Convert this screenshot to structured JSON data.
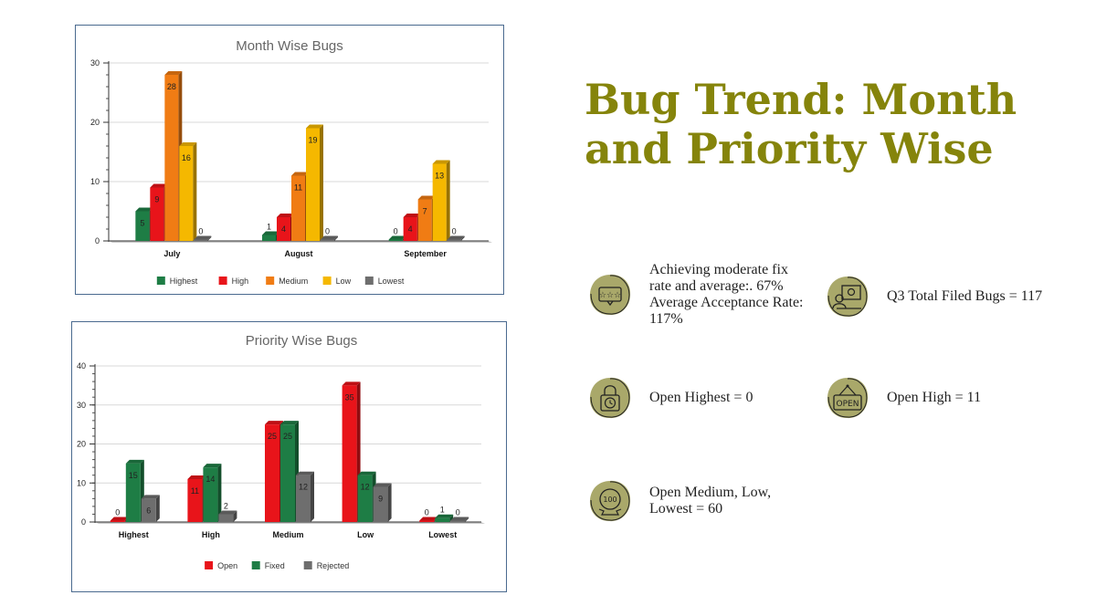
{
  "title": "Bug Trend: Month and Priority Wise",
  "colors": {
    "Highest": "#1e7d45",
    "High": "#e8141a",
    "Medium": "#f07c14",
    "Low": "#f5b800",
    "Lowest": "#6e6e6e",
    "Open": "#e8141a",
    "Fixed": "#1e7d45",
    "Rejected": "#6e6e6e",
    "title": "#85840b",
    "blob": "#a9a86a"
  },
  "stats": [
    {
      "text": "Achieving moderate fix rate and average:. 67% Average Acceptance Rate: 117%",
      "icon": "rating-stars-icon"
    },
    {
      "text": "Q3 Total Filed Bugs = 117",
      "icon": "bug-report-icon"
    },
    {
      "text": "Open Highest = 0",
      "icon": "clock-lock-icon"
    },
    {
      "text": "Open High = 11",
      "icon": "open-sign-icon"
    },
    {
      "text": "Open Medium, Low, Lowest = 60",
      "icon": "badge-100-icon"
    }
  ],
  "chart_data": [
    {
      "type": "bar",
      "title": "Month Wise Bugs",
      "categories": [
        "July",
        "August",
        "September"
      ],
      "series": [
        {
          "name": "Highest",
          "values": [
            5,
            1,
            0
          ]
        },
        {
          "name": "High",
          "values": [
            9,
            4,
            4
          ]
        },
        {
          "name": "Medium",
          "values": [
            28,
            11,
            7
          ]
        },
        {
          "name": "Low",
          "values": [
            16,
            19,
            13
          ]
        },
        {
          "name": "Lowest",
          "values": [
            0,
            0,
            0
          ]
        }
      ],
      "xlabel": "",
      "ylabel": "",
      "ylim": [
        0,
        30
      ],
      "yticks": [
        0,
        10,
        20,
        30
      ],
      "grid": true,
      "legend": "bottom"
    },
    {
      "type": "bar",
      "title": "Priority Wise Bugs",
      "categories": [
        "Highest",
        "High",
        "Medium",
        "Low",
        "Lowest"
      ],
      "series": [
        {
          "name": "Open",
          "values": [
            0,
            11,
            25,
            35,
            0
          ]
        },
        {
          "name": "Fixed",
          "values": [
            15,
            14,
            25,
            12,
            1
          ]
        },
        {
          "name": "Rejected",
          "values": [
            6,
            2,
            12,
            9,
            0
          ]
        }
      ],
      "xlabel": "",
      "ylabel": "",
      "ylim": [
        0,
        40
      ],
      "yticks": [
        0,
        10,
        20,
        30,
        40
      ],
      "grid": true,
      "legend": "bottom"
    }
  ]
}
